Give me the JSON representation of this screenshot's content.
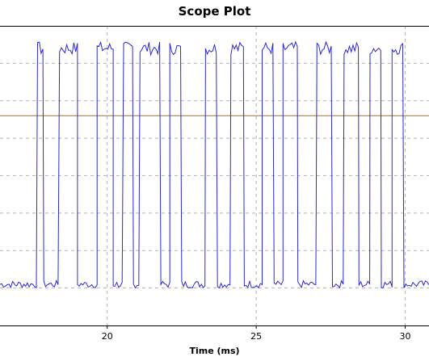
{
  "chart_data": {
    "type": "line",
    "title": "Scope Plot",
    "xlabel": "Time (ms)",
    "ylabel": "",
    "x_tick_labels": [
      "20",
      "25",
      "30"
    ],
    "x_ticks": [
      20,
      25,
      30
    ],
    "xlim": [
      16.4,
      30.8
    ],
    "ylim": [
      0,
      8
    ],
    "grid": true,
    "legend": "none",
    "threshold": {
      "value": 5.6,
      "color": "#d07a10"
    },
    "series": [
      {
        "color": "#2a2ad0",
        "segments": [
          [
            16.4,
            16.9,
            "low"
          ],
          [
            16.9,
            17.66,
            "low"
          ],
          [
            17.66,
            17.87,
            "high"
          ],
          [
            17.87,
            18.4,
            "low"
          ],
          [
            18.4,
            19.0,
            "high"
          ],
          [
            19.0,
            19.66,
            "low"
          ],
          [
            19.66,
            20.2,
            "high"
          ],
          [
            20.2,
            20.55,
            "low"
          ],
          [
            20.55,
            20.88,
            "high"
          ],
          [
            20.88,
            21.1,
            "low"
          ],
          [
            21.1,
            21.8,
            "high"
          ],
          [
            21.8,
            22.1,
            "low"
          ],
          [
            22.1,
            22.5,
            "high"
          ],
          [
            22.5,
            23.3,
            "low"
          ],
          [
            23.3,
            23.7,
            "high"
          ],
          [
            23.7,
            24.15,
            "low"
          ],
          [
            24.15,
            24.6,
            "high"
          ],
          [
            24.6,
            25.2,
            "low"
          ],
          [
            25.2,
            25.6,
            "high"
          ],
          [
            25.6,
            25.9,
            "low"
          ],
          [
            25.9,
            26.4,
            "high"
          ],
          [
            26.4,
            27.04,
            "low"
          ],
          [
            27.04,
            27.56,
            "high"
          ],
          [
            27.56,
            27.95,
            "low"
          ],
          [
            27.95,
            28.45,
            "high"
          ],
          [
            28.45,
            28.82,
            "low"
          ],
          [
            28.82,
            29.2,
            "high"
          ],
          [
            29.2,
            29.56,
            "low"
          ],
          [
            29.56,
            29.96,
            "high"
          ],
          [
            29.96,
            30.8,
            "low"
          ]
        ],
        "low_level": 1.1,
        "high_level": 7.4
      }
    ]
  }
}
